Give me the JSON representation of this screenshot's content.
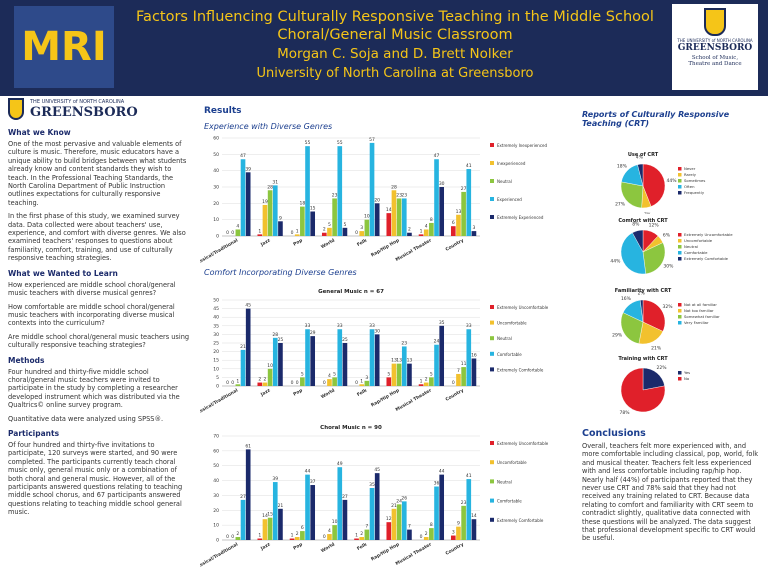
{
  "header": {
    "title": "Factors Influencing Culturally Responsive Teaching in the Middle School Choral/General Music Classroom",
    "authors": "Morgan C. Soja and D. Brett Nolker",
    "affiliation": "University of North Carolina at Greensboro",
    "left_logo": "MRI",
    "right_logo": {
      "line1": "THE UNIVERSITY of NORTH CAROLINA",
      "line2": "GREENSBORO",
      "line3": "School of Music, Theatre and Dance"
    }
  },
  "left_column": {
    "logo": {
      "line1": "THE UNIVERSITY of NORTH CAROLINA",
      "line2": "GREENSBORO"
    },
    "sections": [
      {
        "heading": "What we Know",
        "paragraphs": [
          "One of the most pervasive and valuable elements of culture is music. Therefore, music educators have a unique ability to build bridges between what students already know and content standards they wish to teach. In the Professional Teaching Standards, the North Carolina Department of Public Instruction outlines expectations for culturally responsive teaching.",
          "In the first phase of this study, we examined survey data. Data collected were about teachers' use, experience, and comfort with diverse genres. We also examined teachers' responses to questions about familiarity, comfort, training, and use of culturally responsive teaching strategies."
        ]
      },
      {
        "heading": "What we Wanted to Learn",
        "paragraphs": [
          "How experienced are middle school choral/general music teachers with diverse musical genres?",
          "How comfortable are middle school choral/general music teachers with incorporating diverse musical contexts into the curriculum?",
          "Are middle school choral/general music teachers using culturally responsive teaching strategies?"
        ]
      },
      {
        "heading": "Methods",
        "paragraphs": [
          "Four hundred and thirty-five middle school choral/general music teachers were invited to participate in the study by completing a researcher developed instrument which was distributed via the Qualtrics© online survey program.",
          "Quantitative data were analyzed using SPSS®."
        ]
      },
      {
        "heading": "Participants",
        "paragraphs": [
          "Of four hundred and thirty-five invitations to participate, 120 surveys were started, and 90 were completed. The participants currently teach choral music only, general music only or a combination of both choral and general music. However, all of the participants answered questions relating to teaching middle school chorus, and 67 participants answered questions relating to teaching middle school general music."
        ]
      }
    ]
  },
  "results": {
    "heading": "Results",
    "subheading_1": "Experience with Diverse Genres",
    "subheading_2": "Comfort Incorporating Diverse Genres"
  },
  "crt": {
    "heading": "Reports of Culturally Responsive Teaching (CRT)"
  },
  "conclusions": {
    "heading": "Conclusions",
    "text": "Overall, teachers felt more experienced with, and more comfortable including classical, pop, world, folk and musical theater. Teachers felt less experienced with and less comfortable including rap/hip hop. Nearly half (44%) of participants reported that they never use CRT and 78% said that they had not received any training related to CRT. Because data relating to comfort and familiarity with CRT seem to contradict slightly, qualitative data connected with these questions will be analyzed. The data suggest that professional development specific to CRT would be useful."
  },
  "chart_data": [
    {
      "type": "bar",
      "categories": [
        "Classical/Traditional",
        "Jazz",
        "Pop",
        "World",
        "Folk",
        "Rap/Hip Hop",
        "Musical Theater",
        "Country"
      ],
      "ylim": [
        0,
        60
      ],
      "yticks": [
        0,
        10,
        20,
        30,
        40,
        50,
        60
      ],
      "series": [
        {
          "name": "Extremely Inexperienced",
          "color": "#e0202a",
          "values": [
            0,
            1,
            0,
            2,
            0,
            14,
            1,
            6
          ]
        },
        {
          "name": "Inexperienced",
          "color": "#f2c12e",
          "values": [
            0,
            19,
            1,
            5,
            3,
            28,
            4,
            13
          ]
        },
        {
          "name": "Neutral",
          "color": "#8cc63f",
          "values": [
            4,
            28,
            18,
            23,
            10,
            23,
            8,
            27
          ]
        },
        {
          "name": "Experienced",
          "color": "#27b4e0",
          "values": [
            47,
            31,
            55,
            55,
            57,
            23,
            47,
            41
          ]
        },
        {
          "name": "Extremely Experienced",
          "color": "#1b2a6b",
          "values": [
            39,
            9,
            15,
            5,
            20,
            2,
            30,
            3
          ]
        }
      ]
    },
    {
      "type": "bar",
      "title": "General Music n = 67",
      "categories": [
        "Classical/Traditional",
        "Jazz",
        "Pop",
        "World",
        "Folk",
        "Rap/Hip Hop",
        "Musical Theater",
        "Country"
      ],
      "ylim": [
        0,
        50
      ],
      "yticks": [
        0,
        5,
        10,
        15,
        20,
        25,
        30,
        35,
        40,
        45,
        50
      ],
      "series": [
        {
          "name": "Extremely Uncomfortable",
          "color": "#e0202a",
          "values": [
            0,
            2,
            0,
            0,
            0,
            5,
            1,
            0
          ]
        },
        {
          "name": "Uncomfortable",
          "color": "#f2c12e",
          "values": [
            0,
            2,
            0,
            4,
            1,
            13,
            2,
            7
          ]
        },
        {
          "name": "Neutral",
          "color": "#8cc63f",
          "values": [
            1,
            10,
            5,
            5,
            3,
            13,
            5,
            11
          ]
        },
        {
          "name": "Comfortable",
          "color": "#27b4e0",
          "values": [
            21,
            28,
            33,
            33,
            33,
            23,
            24,
            33
          ]
        },
        {
          "name": "Extremely Comfortable",
          "color": "#1b2a6b",
          "values": [
            45,
            25,
            29,
            25,
            30,
            13,
            35,
            16
          ]
        }
      ]
    },
    {
      "type": "bar",
      "title": "Choral Music n = 90",
      "categories": [
        "Classical/Traditional",
        "Jazz",
        "Pop",
        "World",
        "Folk",
        "Rap/Hip Hop",
        "Musical Theater",
        "Country"
      ],
      "ylim": [
        0,
        70
      ],
      "yticks": [
        0,
        10,
        20,
        30,
        40,
        50,
        60,
        70
      ],
      "series": [
        {
          "name": "Extremely Uncomfortable",
          "color": "#e0202a",
          "values": [
            0,
            1,
            1,
            0,
            1,
            12,
            0,
            3
          ]
        },
        {
          "name": "Uncomfortable",
          "color": "#f2c12e",
          "values": [
            0,
            14,
            2,
            4,
            2,
            21,
            2,
            9
          ]
        },
        {
          "name": "Neutral",
          "color": "#8cc63f",
          "values": [
            2,
            15,
            6,
            10,
            7,
            24,
            8,
            23
          ]
        },
        {
          "name": "Comfortable",
          "color": "#27b4e0",
          "values": [
            27,
            39,
            44,
            49,
            35,
            26,
            36,
            41
          ]
        },
        {
          "name": "Extremely Comfortable",
          "color": "#1b2a6b",
          "values": [
            61,
            21,
            37,
            27,
            45,
            7,
            44,
            14
          ]
        }
      ]
    },
    {
      "type": "pie",
      "title": "Use of CRT",
      "categories": [
        "Never",
        "Rarely",
        "Sometimes",
        "Often",
        "Frequently"
      ],
      "values": [
        44,
        7,
        27,
        18,
        4
      ],
      "value_labels": [
        "44%",
        "7%",
        "27%",
        "18%",
        "4%"
      ],
      "colors": [
        "#e0202a",
        "#f2c12e",
        "#8cc63f",
        "#27b4e0",
        "#1b2a6b"
      ]
    },
    {
      "type": "pie",
      "title": "Comfort with CRT",
      "categories": [
        "Extremely Uncomfortable",
        "Uncomfortable",
        "Neutral",
        "Comfortable",
        "Extremely Comfortable"
      ],
      "values": [
        12,
        6,
        30,
        44,
        8
      ],
      "value_labels": [
        "12%",
        "6%",
        "30%",
        "44%",
        "8%"
      ],
      "colors": [
        "#e0202a",
        "#f2c12e",
        "#8cc63f",
        "#27b4e0",
        "#1b2a6b"
      ]
    },
    {
      "type": "pie",
      "title": "Familiarity with CRT",
      "categories": [
        "Not at all familiar",
        "Not too familiar",
        "Somewhat familiar",
        "Very Familiar",
        null
      ],
      "values": [
        32,
        21,
        29,
        16,
        2
      ],
      "value_labels": [
        "32%",
        "21%",
        "29%",
        "16%",
        "2%"
      ],
      "colors": [
        "#e0202a",
        "#f2c12e",
        "#8cc63f",
        "#27b4e0",
        "#1b2a6b"
      ]
    },
    {
      "type": "pie",
      "title": "Training with CRT",
      "categories": [
        "Yes",
        "No"
      ],
      "values": [
        22,
        78
      ],
      "value_labels": [
        "22%",
        "78%"
      ],
      "colors": [
        "#1b2a6b",
        "#e0202a"
      ]
    }
  ]
}
